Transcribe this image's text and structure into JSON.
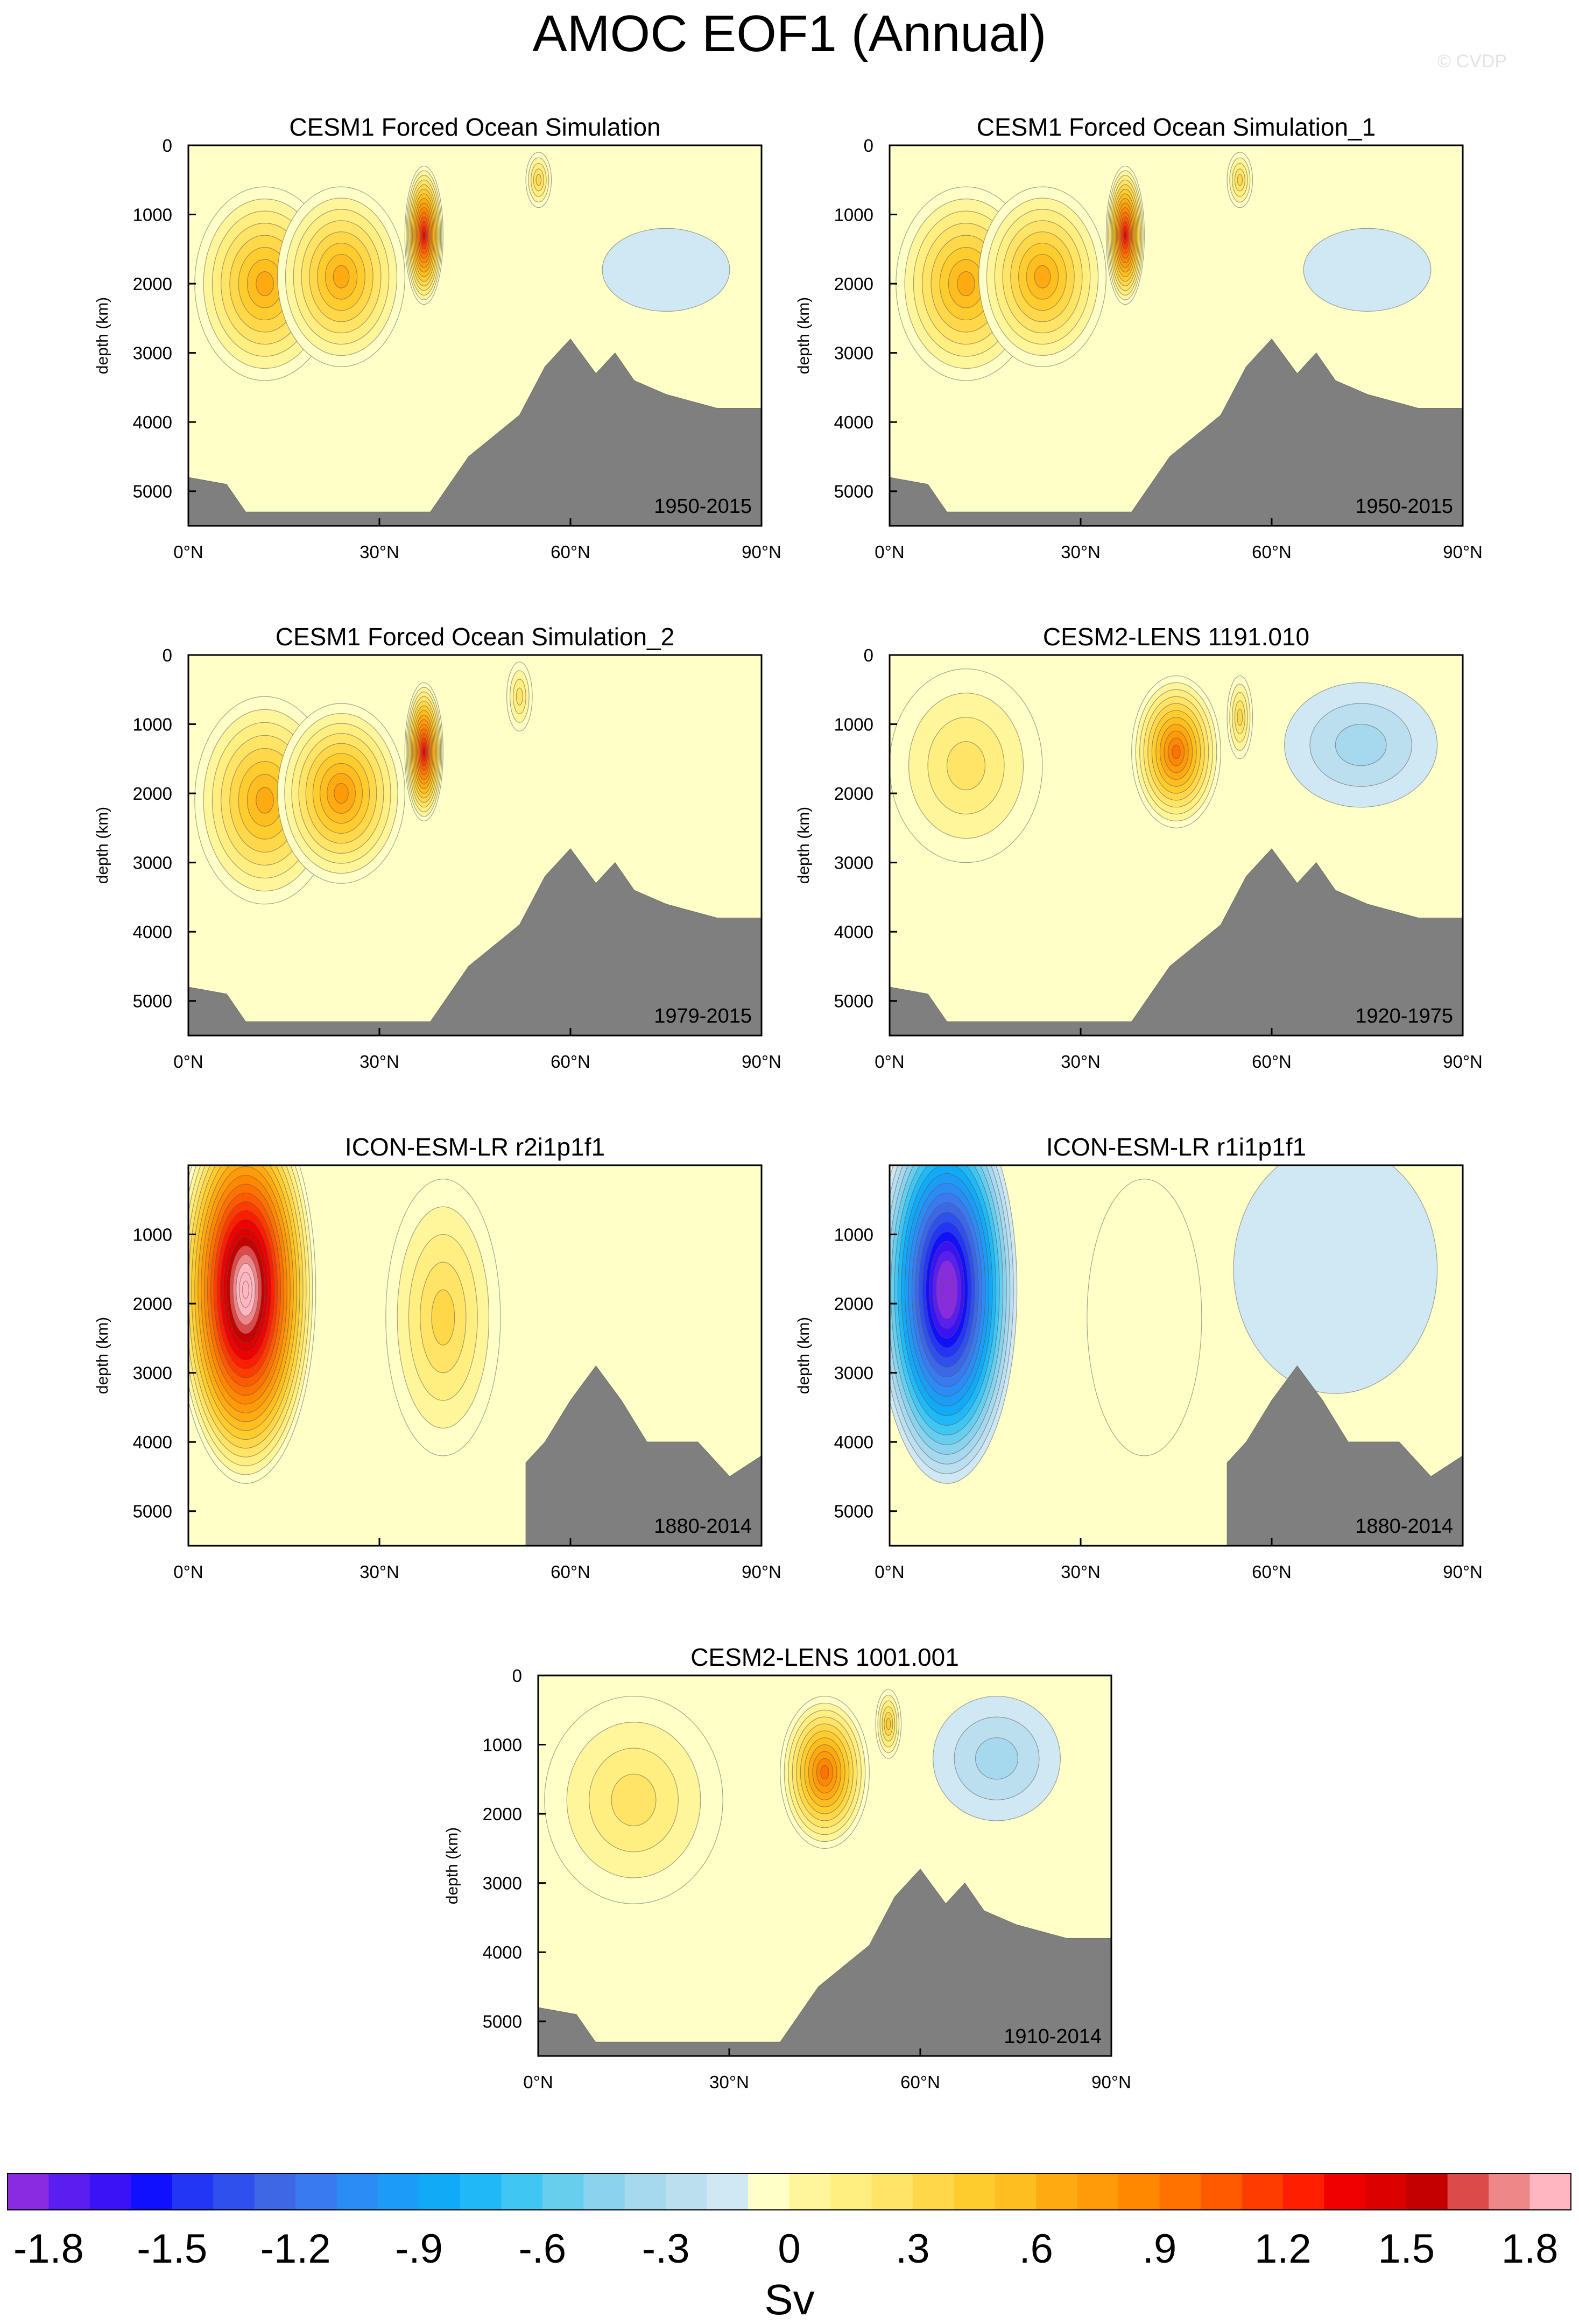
{
  "figure": {
    "title": "AMOC EOF1 (Annual)",
    "watermark": "© CVDP",
    "colorbar_unit": "Sv"
  },
  "chart_data": [
    {
      "type": "contour",
      "title": "CESM1 Forced Ocean Simulation",
      "period": "1950-2015",
      "ylabel": "depth (km)",
      "xlim": [
        0,
        90
      ],
      "ylim": [
        0,
        5500
      ],
      "x_ticks": [
        "0°N",
        "30°N",
        "60°N",
        "90°N"
      ],
      "y_ticks": [
        "0",
        "1000",
        "2000",
        "3000",
        "4000",
        "5000"
      ],
      "features": [
        {
          "lat": 12,
          "depth": 2000,
          "rx": 11,
          "ry": 1400,
          "value": 0.75
        },
        {
          "lat": 24,
          "depth": 1900,
          "rx": 10,
          "ry": 1300,
          "value": 0.8
        },
        {
          "lat": 37,
          "depth": 1300,
          "rx": 3,
          "ry": 1000,
          "value": 1.5
        },
        {
          "lat": 55,
          "depth": 500,
          "rx": 2,
          "ry": 400,
          "value": 0.5
        },
        {
          "lat": 75,
          "depth": 1800,
          "rx": 10,
          "ry": 600,
          "value": -0.1
        }
      ],
      "bathymetry": [
        [
          0,
          4800
        ],
        [
          6,
          4900
        ],
        [
          9,
          5300
        ],
        [
          20,
          5300
        ],
        [
          38,
          5300
        ],
        [
          44,
          4500
        ],
        [
          52,
          3900
        ],
        [
          56,
          3200
        ],
        [
          60,
          2800
        ],
        [
          64,
          3300
        ],
        [
          67,
          3000
        ],
        [
          70,
          3400
        ],
        [
          75,
          3600
        ],
        [
          83,
          3800
        ],
        [
          90,
          3800
        ]
      ]
    },
    {
      "type": "contour",
      "title": "CESM1 Forced Ocean Simulation_1",
      "period": "1950-2015",
      "ylabel": "depth (km)",
      "xlim": [
        0,
        90
      ],
      "ylim": [
        0,
        5500
      ],
      "x_ticks": [
        "0°N",
        "30°N",
        "60°N",
        "90°N"
      ],
      "y_ticks": [
        "0",
        "1000",
        "2000",
        "3000",
        "4000",
        "5000"
      ],
      "features": [
        {
          "lat": 12,
          "depth": 2000,
          "rx": 11,
          "ry": 1400,
          "value": 0.75
        },
        {
          "lat": 24,
          "depth": 1900,
          "rx": 10,
          "ry": 1300,
          "value": 0.8
        },
        {
          "lat": 37,
          "depth": 1300,
          "rx": 3,
          "ry": 1000,
          "value": 1.5
        },
        {
          "lat": 55,
          "depth": 500,
          "rx": 2,
          "ry": 400,
          "value": 0.5
        },
        {
          "lat": 75,
          "depth": 1800,
          "rx": 10,
          "ry": 600,
          "value": -0.1
        }
      ],
      "bathymetry": [
        [
          0,
          4800
        ],
        [
          6,
          4900
        ],
        [
          9,
          5300
        ],
        [
          20,
          5300
        ],
        [
          38,
          5300
        ],
        [
          44,
          4500
        ],
        [
          52,
          3900
        ],
        [
          56,
          3200
        ],
        [
          60,
          2800
        ],
        [
          64,
          3300
        ],
        [
          67,
          3000
        ],
        [
          70,
          3400
        ],
        [
          75,
          3600
        ],
        [
          83,
          3800
        ],
        [
          90,
          3800
        ]
      ]
    },
    {
      "type": "contour",
      "title": "CESM1 Forced Ocean Simulation_2",
      "period": "1979-2015",
      "ylabel": "depth (km)",
      "xlim": [
        0,
        90
      ],
      "ylim": [
        0,
        5500
      ],
      "x_ticks": [
        "0°N",
        "30°N",
        "60°N",
        "90°N"
      ],
      "y_ticks": [
        "0",
        "1000",
        "2000",
        "3000",
        "4000",
        "5000"
      ],
      "features": [
        {
          "lat": 12,
          "depth": 2100,
          "rx": 11,
          "ry": 1500,
          "value": 0.8
        },
        {
          "lat": 24,
          "depth": 2000,
          "rx": 10,
          "ry": 1300,
          "value": 0.85
        },
        {
          "lat": 37,
          "depth": 1400,
          "rx": 3,
          "ry": 1000,
          "value": 1.5
        },
        {
          "lat": 52,
          "depth": 600,
          "rx": 2,
          "ry": 500,
          "value": 0.4
        }
      ],
      "bathymetry": [
        [
          0,
          4800
        ],
        [
          6,
          4900
        ],
        [
          9,
          5300
        ],
        [
          20,
          5300
        ],
        [
          38,
          5300
        ],
        [
          44,
          4500
        ],
        [
          52,
          3900
        ],
        [
          56,
          3200
        ],
        [
          60,
          2800
        ],
        [
          64,
          3300
        ],
        [
          67,
          3000
        ],
        [
          70,
          3400
        ],
        [
          75,
          3600
        ],
        [
          83,
          3800
        ],
        [
          90,
          3800
        ]
      ]
    },
    {
      "type": "contour",
      "title": "CESM2-LENS 1191.010",
      "period": "1920-1975",
      "ylabel": "depth (km)",
      "xlim": [
        0,
        90
      ],
      "ylim": [
        0,
        5500
      ],
      "x_ticks": [
        "0°N",
        "30°N",
        "60°N",
        "90°N"
      ],
      "y_ticks": [
        "0",
        "1000",
        "2000",
        "3000",
        "4000",
        "5000"
      ],
      "features": [
        {
          "lat": 12,
          "depth": 1600,
          "rx": 12,
          "ry": 1400,
          "value": 0.4
        },
        {
          "lat": 45,
          "depth": 1400,
          "rx": 7,
          "ry": 1100,
          "value": 1.1
        },
        {
          "lat": 55,
          "depth": 900,
          "rx": 2,
          "ry": 600,
          "value": 0.5
        },
        {
          "lat": 74,
          "depth": 1300,
          "rx": 12,
          "ry": 900,
          "value": -0.3
        }
      ],
      "bathymetry": [
        [
          0,
          4800
        ],
        [
          6,
          4900
        ],
        [
          9,
          5300
        ],
        [
          20,
          5300
        ],
        [
          38,
          5300
        ],
        [
          44,
          4500
        ],
        [
          52,
          3900
        ],
        [
          56,
          3200
        ],
        [
          60,
          2800
        ],
        [
          64,
          3300
        ],
        [
          67,
          3000
        ],
        [
          70,
          3400
        ],
        [
          75,
          3600
        ],
        [
          83,
          3800
        ],
        [
          90,
          3800
        ]
      ]
    },
    {
      "type": "contour",
      "title": "ICON-ESM-LR r2i1p1f1",
      "period": "1880-2014",
      "ylabel": "depth (km)",
      "xlim": [
        0,
        90
      ],
      "ylim": [
        0,
        5500
      ],
      "x_ticks": [
        "0°N",
        "30°N",
        "60°N",
        "90°N"
      ],
      "y_ticks": [
        "1000",
        "2000",
        "3000",
        "4000",
        "5000"
      ],
      "features": [
        {
          "lat": 9,
          "depth": 1800,
          "rx": 11,
          "ry": 2800,
          "value": 2.2
        },
        {
          "lat": 40,
          "depth": 2200,
          "rx": 9,
          "ry": 2000,
          "value": 0.5
        }
      ],
      "bathymetry": [
        [
          0,
          5500
        ],
        [
          53,
          5500
        ],
        [
          53,
          4300
        ],
        [
          56,
          4000
        ],
        [
          60,
          3400
        ],
        [
          64,
          2900
        ],
        [
          68,
          3400
        ],
        [
          72,
          4000
        ],
        [
          80,
          4000
        ],
        [
          85,
          4500
        ],
        [
          90,
          4200
        ]
      ]
    },
    {
      "type": "contour",
      "title": "ICON-ESM-LR r1i1p1f1",
      "period": "1880-2014",
      "ylabel": "depth (km)",
      "xlim": [
        0,
        90
      ],
      "ylim": [
        0,
        5500
      ],
      "x_ticks": [
        "0°N",
        "30°N",
        "60°N",
        "90°N"
      ],
      "y_ticks": [
        "1000",
        "2000",
        "3000",
        "4000",
        "5000"
      ],
      "features": [
        {
          "lat": 9,
          "depth": 1800,
          "rx": 11,
          "ry": 2800,
          "value": -2.0
        },
        {
          "lat": 40,
          "depth": 2200,
          "rx": 9,
          "ry": 2000,
          "value": 0.0
        },
        {
          "lat": 70,
          "depth": 1500,
          "rx": 16,
          "ry": 1800,
          "value": -0.15
        }
      ],
      "bathymetry": [
        [
          0,
          5500
        ],
        [
          53,
          5500
        ],
        [
          53,
          4300
        ],
        [
          56,
          4000
        ],
        [
          60,
          3400
        ],
        [
          64,
          2900
        ],
        [
          68,
          3400
        ],
        [
          72,
          4000
        ],
        [
          80,
          4000
        ],
        [
          85,
          4500
        ],
        [
          90,
          4200
        ]
      ]
    },
    {
      "type": "contour",
      "title": "CESM2-LENS 1001.001",
      "period": "1910-2014",
      "ylabel": "depth (km)",
      "xlim": [
        0,
        90
      ],
      "ylim": [
        0,
        5500
      ],
      "x_ticks": [
        "0°N",
        "30°N",
        "60°N",
        "90°N"
      ],
      "y_ticks": [
        "0",
        "1000",
        "2000",
        "3000",
        "4000",
        "5000"
      ],
      "features": [
        {
          "lat": 15,
          "depth": 1800,
          "rx": 14,
          "ry": 1500,
          "value": 0.4
        },
        {
          "lat": 45,
          "depth": 1400,
          "rx": 7,
          "ry": 1100,
          "value": 1.1
        },
        {
          "lat": 55,
          "depth": 700,
          "rx": 2,
          "ry": 500,
          "value": 0.6
        },
        {
          "lat": 72,
          "depth": 1200,
          "rx": 10,
          "ry": 900,
          "value": -0.3
        }
      ],
      "bathymetry": [
        [
          0,
          4800
        ],
        [
          6,
          4900
        ],
        [
          9,
          5300
        ],
        [
          20,
          5300
        ],
        [
          38,
          5300
        ],
        [
          44,
          4500
        ],
        [
          52,
          3900
        ],
        [
          56,
          3200
        ],
        [
          60,
          2800
        ],
        [
          64,
          3300
        ],
        [
          67,
          3000
        ],
        [
          70,
          3400
        ],
        [
          75,
          3600
        ],
        [
          83,
          3800
        ],
        [
          90,
          3800
        ]
      ]
    }
  ],
  "colorbar": {
    "labels": [
      "-1.8",
      "-1.5",
      "-1.2",
      "-.9",
      "-.6",
      "-.3",
      "0",
      ".3",
      ".6",
      ".9",
      "1.2",
      "1.5",
      "1.8"
    ],
    "colors": [
      "#8a2be2",
      "#5a1ef0",
      "#3a12f5",
      "#1010ff",
      "#2436f5",
      "#3050ee",
      "#3c68e6",
      "#3a7af0",
      "#2c8cf5",
      "#1c9cf6",
      "#10aaf7",
      "#20b8f6",
      "#40c6f2",
      "#68ceee",
      "#8ad2ee",
      "#a6d8ee",
      "#bcdff0",
      "#d0e8f4",
      "#ffffc8",
      "#fff59a",
      "#ffee80",
      "#ffe466",
      "#ffd84a",
      "#ffcc2e",
      "#ffbe20",
      "#ffaa10",
      "#ff9a08",
      "#ff8800",
      "#ff7200",
      "#ff5a00",
      "#ff3c00",
      "#ff1e00",
      "#f00000",
      "#dc0000",
      "#c40000",
      "#dd4a4a",
      "#ee8888",
      "#ffb6c1"
    ]
  }
}
